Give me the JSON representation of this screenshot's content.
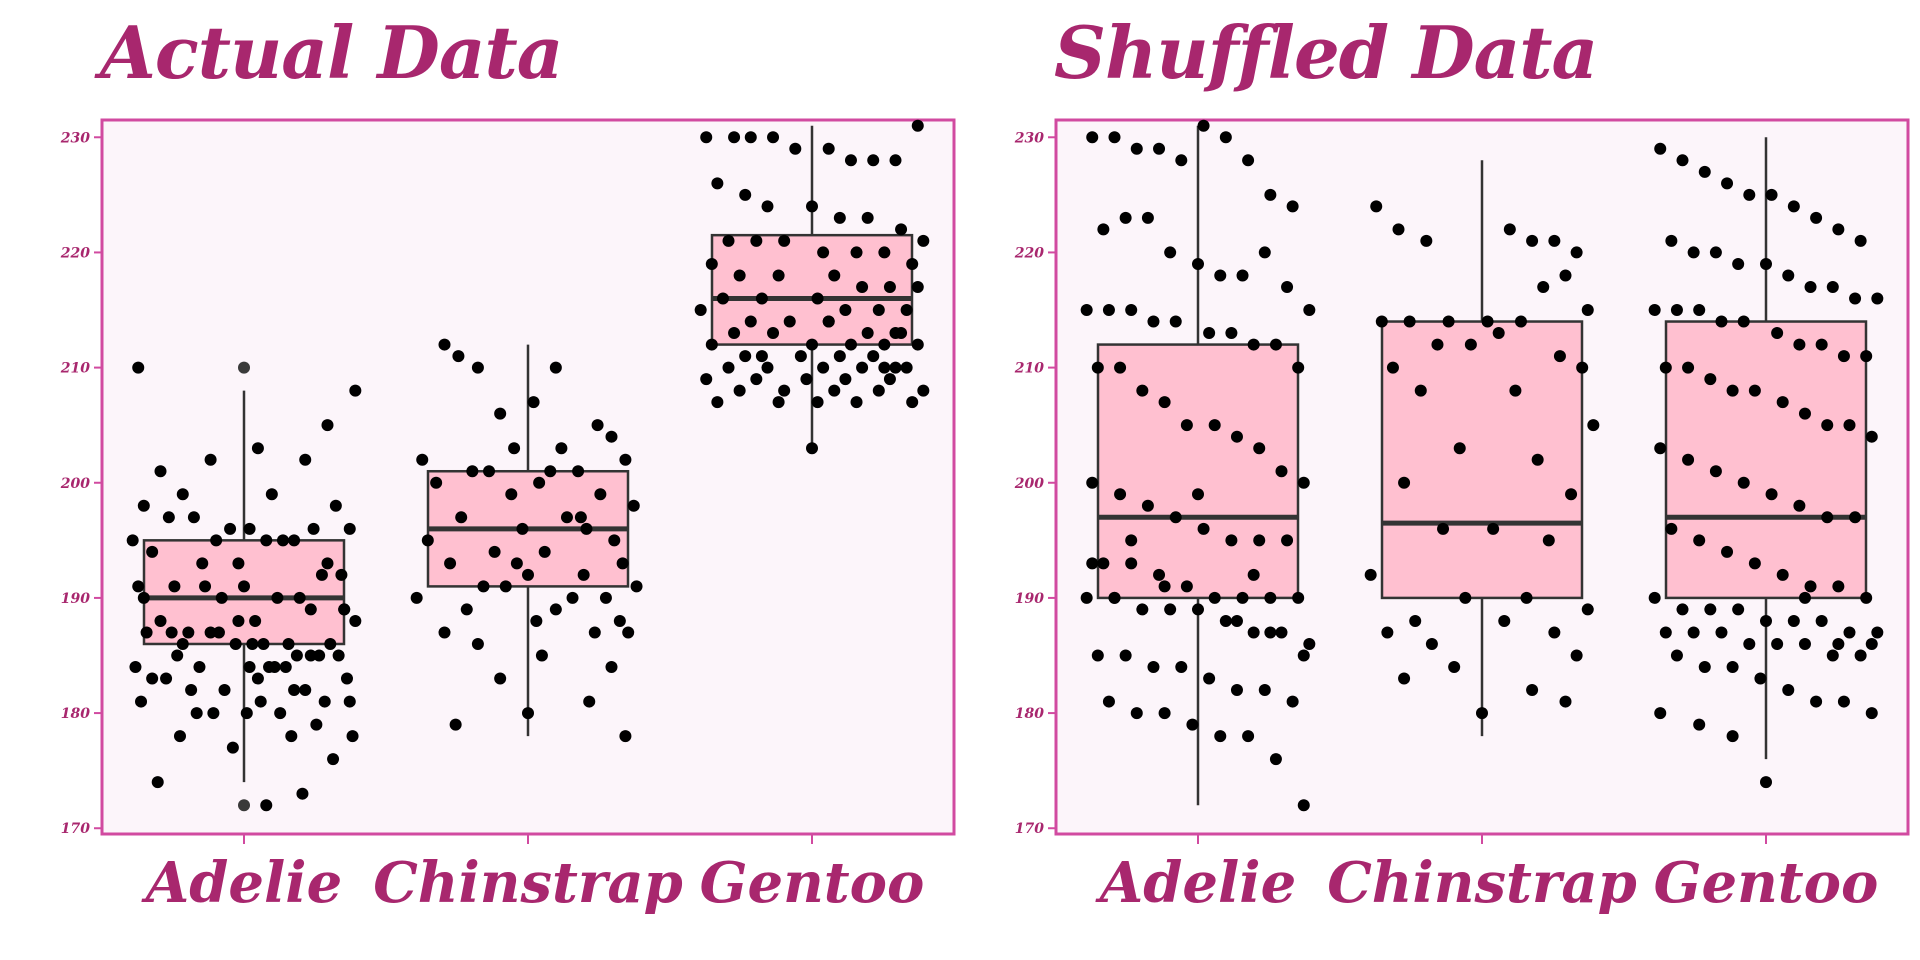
{
  "colors": {
    "accent": "#a8276e",
    "panel_border": "#d14aa0",
    "panel_bg": "#fcf5fa",
    "box_fill": "#ffc0d0",
    "box_stroke": "#333333",
    "point": "#000000"
  },
  "chart_data": [
    {
      "type": "boxplot",
      "title": "Actual Data",
      "categories": [
        "Adelie",
        "Chinstrap",
        "Gentoo"
      ],
      "ylim": [
        169.5,
        231.5
      ],
      "yticks": [
        170,
        180,
        190,
        200,
        210,
        220,
        230
      ],
      "grid": false,
      "boxes": [
        {
          "category": "Adelie",
          "q1": 186,
          "median": 190,
          "q3": 195,
          "whisker_low": 174,
          "whisker_high": 208,
          "outliers": [
            210,
            172
          ]
        },
        {
          "category": "Chinstrap",
          "q1": 191,
          "median": 196,
          "q3": 201,
          "whisker_low": 178,
          "whisker_high": 212,
          "outliers": []
        },
        {
          "category": "Gentoo",
          "q1": 212,
          "median": 216,
          "q3": 221.5,
          "whisker_low": 203,
          "whisker_high": 231,
          "outliers": []
        }
      ],
      "points": [
        {
          "category": "Adelie",
          "dx": [
            -0.38,
            -0.3,
            -0.12,
            0.05,
            0.22,
            0.4,
            -0.22,
            0.1,
            -0.36,
            0.3,
            0.02,
            -0.18,
            0.33,
            -0.05,
            -0.4,
            0.18,
            -0.27,
            0.38,
            -0.1,
            0.25,
            0.08,
            -0.33,
            0.14,
            -0.02,
            0.35,
            -0.15,
            0.28,
            -0.25,
            0.0,
            0.2,
            -0.38,
            0.12,
            0.36,
            -0.08,
            -0.3,
            0.24,
            0.04,
            -0.2,
            0.4,
            -0.12,
            0.16,
            -0.35,
            0.31,
            0.07,
            -0.24,
            0.27,
            -0.03,
            0.19,
            -0.39,
            0.11,
            0.34,
            -0.16,
            0.02,
            -0.28,
            0.37,
            0.09,
            -0.07,
            0.22,
            -0.33,
            0.06,
            0.29,
            -0.19,
            0.13,
            -0.37,
            0.01,
            0.26,
            -0.11,
            0.39,
            -0.23,
            0.17,
            -0.04,
            0.32,
            -0.31,
            0.21,
            0.08,
            -0.14,
            0.36,
            -0.26,
            0.03,
            0.24,
            -0.09,
            0.15,
            -0.36,
            0.3,
            -0.02,
            0.18,
            -0.22,
            0.05,
            0.38,
            -0.17
          ],
          "y": [
            210,
            201,
            202,
            203,
            202,
            208,
            199,
            199,
            198,
            205,
            196,
            197,
            198,
            196,
            195,
            195,
            197,
            196,
            195,
            196,
            195,
            194,
            195,
            193,
            192,
            193,
            192,
            191,
            191,
            190,
            191,
            190,
            189,
            190,
            188,
            189,
            188,
            187,
            188,
            187,
            186,
            187,
            186,
            186,
            185,
            185,
            186,
            185,
            184,
            184,
            185,
            184,
            184,
            183,
            183,
            184,
            182,
            182,
            183,
            181,
            181,
            182,
            180,
            181,
            180,
            179,
            180,
            178,
            178,
            178,
            177,
            176,
            174,
            173,
            172,
            191,
            189,
            187,
            186,
            185,
            187,
            184,
            190,
            193,
            188,
            182,
            186,
            183,
            181,
            180
          ]
        },
        {
          "category": "Chinstrap",
          "dx": [
            -0.3,
            -0.25,
            -0.18,
            0.1,
            0.02,
            -0.1,
            0.25,
            0.3,
            -0.05,
            0.12,
            -0.38,
            0.35,
            -0.2,
            0.08,
            0.18,
            -0.14,
            0.04,
            -0.33,
            0.26,
            -0.06,
            0.38,
            -0.24,
            0.14,
            -0.02,
            0.21,
            -0.36,
            0.31,
            -0.12,
            0.06,
            0.34,
            -0.28,
            0.0,
            0.2,
            -0.16,
            0.39,
            -0.08,
            0.28,
            -0.4,
            0.16,
            0.1,
            -0.22,
            0.33,
            0.03,
            -0.3,
            0.24,
            -0.18,
            0.36,
            0.05,
            0.3,
            -0.1,
            0.22,
            0.0,
            -0.26,
            0.35,
            0.19,
            -0.04
          ],
          "y": [
            212,
            211,
            210,
            210,
            207,
            206,
            205,
            204,
            203,
            203,
            202,
            202,
            201,
            201,
            201,
            201,
            200,
            200,
            199,
            199,
            198,
            197,
            197,
            196,
            196,
            195,
            195,
            194,
            194,
            193,
            193,
            192,
            192,
            191,
            191,
            191,
            190,
            190,
            190,
            189,
            189,
            188,
            188,
            187,
            187,
            186,
            187,
            185,
            184,
            183,
            181,
            180,
            179,
            178,
            197,
            193
          ]
        },
        {
          "category": "Gentoo",
          "dx": [
            -0.38,
            -0.28,
            -0.22,
            -0.14,
            -0.06,
            0.06,
            0.14,
            0.22,
            0.3,
            0.38,
            -0.34,
            -0.24,
            -0.16,
            0.0,
            0.1,
            0.2,
            0.32,
            0.4,
            -0.3,
            -0.2,
            -0.1,
            0.04,
            0.16,
            0.26,
            0.36,
            -0.36,
            -0.26,
            -0.12,
            0.08,
            0.18,
            0.28,
            0.38,
            -0.32,
            -0.18,
            0.02,
            0.12,
            0.24,
            0.34,
            -0.4,
            -0.22,
            -0.08,
            0.06,
            0.2,
            0.3,
            -0.28,
            -0.14,
            0.0,
            0.14,
            0.26,
            0.38,
            -0.36,
            -0.24,
            -0.04,
            0.1,
            0.22,
            0.34,
            -0.3,
            -0.16,
            0.04,
            0.18,
            0.3,
            -0.38,
            -0.2,
            -0.02,
            0.12,
            0.28,
            0.4,
            -0.26,
            -0.1,
            0.08,
            0.24,
            0.36,
            -0.34,
            -0.12,
            0.02,
            0.16,
            0.32,
            -0.18,
            0.06,
            0.26,
            0.0
          ],
          "y": [
            230,
            230,
            230,
            230,
            229,
            229,
            228,
            228,
            228,
            231,
            226,
            225,
            224,
            224,
            223,
            223,
            222,
            221,
            221,
            221,
            221,
            220,
            220,
            220,
            219,
            219,
            218,
            218,
            218,
            217,
            217,
            217,
            216,
            216,
            216,
            215,
            215,
            215,
            215,
            214,
            214,
            214,
            213,
            213,
            213,
            213,
            212,
            212,
            212,
            212,
            212,
            211,
            211,
            211,
            211,
            210,
            210,
            210,
            210,
            210,
            210,
            209,
            209,
            209,
            209,
            209,
            208,
            208,
            208,
            208,
            208,
            207,
            207,
            207,
            207,
            207,
            213,
            211,
            214,
            210,
            203
          ]
        }
      ]
    },
    {
      "type": "boxplot",
      "title": "Shuffled Data",
      "categories": [
        "Adelie",
        "Chinstrap",
        "Gentoo"
      ],
      "ylim": [
        169.5,
        231.5
      ],
      "yticks": [
        170,
        180,
        190,
        200,
        210,
        220,
        230
      ],
      "grid": false,
      "boxes": [
        {
          "category": "Adelie",
          "q1": 190,
          "median": 197,
          "q3": 212,
          "whisker_low": 172,
          "whisker_high": 231,
          "outliers": []
        },
        {
          "category": "Chinstrap",
          "q1": 190,
          "median": 196.5,
          "q3": 214,
          "whisker_low": 178,
          "whisker_high": 228,
          "outliers": []
        },
        {
          "category": "Gentoo",
          "q1": 190,
          "median": 197,
          "q3": 214,
          "whisker_low": 176,
          "whisker_high": 230,
          "outliers": []
        }
      ],
      "points": [
        {
          "category": "Adelie",
          "dx": [
            -0.38,
            -0.3,
            -0.22,
            -0.14,
            -0.06,
            0.02,
            0.1,
            0.18,
            0.26,
            0.34,
            -0.34,
            -0.26,
            -0.18,
            -0.1,
            0.0,
            0.08,
            0.16,
            0.24,
            0.32,
            0.4,
            -0.4,
            -0.32,
            -0.24,
            -0.16,
            -0.08,
            0.04,
            0.12,
            0.2,
            0.28,
            0.36,
            -0.36,
            -0.28,
            -0.2,
            -0.12,
            -0.04,
            0.06,
            0.14,
            0.22,
            0.3,
            0.38,
            -0.38,
            -0.28,
            -0.18,
            -0.08,
            0.02,
            0.12,
            0.22,
            0.32,
            -0.34,
            -0.24,
            -0.14,
            -0.04,
            0.06,
            0.16,
            0.26,
            0.36,
            -0.4,
            -0.3,
            -0.2,
            -0.1,
            0.0,
            0.1,
            0.2,
            0.3,
            0.4,
            -0.36,
            -0.26,
            -0.16,
            -0.06,
            0.04,
            0.14,
            0.24,
            0.34,
            -0.32,
            -0.22,
            -0.12,
            -0.02,
            0.08,
            0.18,
            0.28,
            0.38,
            -0.38,
            -0.24,
            -0.12,
            0.0,
            0.14,
            0.26,
            0.38,
            -0.3,
            0.2
          ],
          "y": [
            230,
            230,
            229,
            229,
            228,
            231,
            230,
            228,
            225,
            224,
            222,
            223,
            223,
            220,
            219,
            218,
            218,
            220,
            217,
            215,
            215,
            215,
            215,
            214,
            214,
            213,
            213,
            212,
            212,
            210,
            210,
            210,
            208,
            207,
            205,
            205,
            204,
            203,
            201,
            200,
            200,
            199,
            198,
            197,
            196,
            195,
            195,
            195,
            193,
            193,
            192,
            191,
            190,
            190,
            190,
            190,
            190,
            190,
            189,
            189,
            189,
            188,
            187,
            187,
            186,
            185,
            185,
            184,
            184,
            183,
            182,
            182,
            181,
            181,
            180,
            180,
            179,
            178,
            178,
            176,
            172,
            193,
            195,
            191,
            199,
            188,
            187,
            185,
            190,
            192
          ]
        },
        {
          "category": "Chinstrap",
          "dx": [
            -0.38,
            -0.3,
            -0.2,
            0.1,
            0.18,
            0.26,
            0.34,
            0.02,
            -0.12,
            0.22,
            0.3,
            -0.36,
            -0.26,
            0.14,
            0.38,
            -0.16,
            0.06,
            -0.04,
            0.28,
            -0.32,
            0.36,
            -0.22,
            0.12,
            0.4,
            -0.08,
            0.2,
            -0.28,
            0.32,
            -0.14,
            0.04,
            0.24,
            -0.4,
            0.16,
            -0.06,
            0.38,
            -0.24,
            0.08,
            -0.34,
            0.26,
            -0.18,
            0.34,
            -0.1,
            0.18,
            0.0,
            -0.28,
            0.3
          ],
          "y": [
            224,
            222,
            221,
            222,
            221,
            221,
            220,
            214,
            214,
            217,
            218,
            214,
            214,
            214,
            215,
            212,
            213,
            212,
            211,
            210,
            210,
            208,
            208,
            205,
            203,
            202,
            200,
            199,
            196,
            196,
            195,
            192,
            190,
            190,
            189,
            188,
            188,
            187,
            187,
            186,
            185,
            184,
            182,
            180,
            183,
            181
          ]
        },
        {
          "category": "Gentoo",
          "dx": [
            -0.38,
            -0.3,
            -0.22,
            -0.14,
            -0.06,
            0.02,
            0.1,
            0.18,
            0.26,
            0.34,
            -0.34,
            -0.26,
            -0.18,
            -0.1,
            0.0,
            0.08,
            0.16,
            0.24,
            0.32,
            0.4,
            -0.4,
            -0.32,
            -0.24,
            -0.16,
            -0.08,
            0.04,
            0.12,
            0.2,
            0.28,
            0.36,
            -0.36,
            -0.28,
            -0.2,
            -0.12,
            -0.04,
            0.06,
            0.14,
            0.22,
            0.3,
            0.38,
            -0.38,
            -0.28,
            -0.18,
            -0.08,
            0.02,
            0.12,
            0.22,
            0.32,
            -0.34,
            -0.24,
            -0.14,
            -0.04,
            0.06,
            0.16,
            0.26,
            0.36,
            -0.4,
            -0.3,
            -0.2,
            -0.1,
            0.0,
            0.1,
            0.2,
            0.3,
            0.4,
            -0.36,
            -0.26,
            -0.16,
            -0.06,
            0.04,
            0.14,
            0.24,
            0.34,
            -0.32,
            -0.22,
            -0.12,
            -0.02,
            0.08,
            0.18,
            0.28,
            0.38,
            -0.38,
            -0.24,
            -0.12,
            0.0,
            0.14,
            0.26,
            0.38
          ],
          "y": [
            229,
            228,
            227,
            226,
            225,
            225,
            224,
            223,
            222,
            221,
            221,
            220,
            220,
            219,
            219,
            218,
            217,
            217,
            216,
            216,
            215,
            215,
            215,
            214,
            214,
            213,
            212,
            212,
            211,
            211,
            210,
            210,
            209,
            208,
            208,
            207,
            206,
            205,
            205,
            204,
            203,
            202,
            201,
            200,
            199,
            198,
            197,
            197,
            196,
            195,
            194,
            193,
            192,
            191,
            191,
            190,
            190,
            189,
            189,
            189,
            188,
            188,
            188,
            187,
            187,
            187,
            187,
            187,
            186,
            186,
            186,
            185,
            185,
            185,
            184,
            184,
            183,
            182,
            181,
            181,
            180,
            180,
            179,
            178,
            174,
            190,
            186,
            186
          ]
        }
      ]
    }
  ]
}
